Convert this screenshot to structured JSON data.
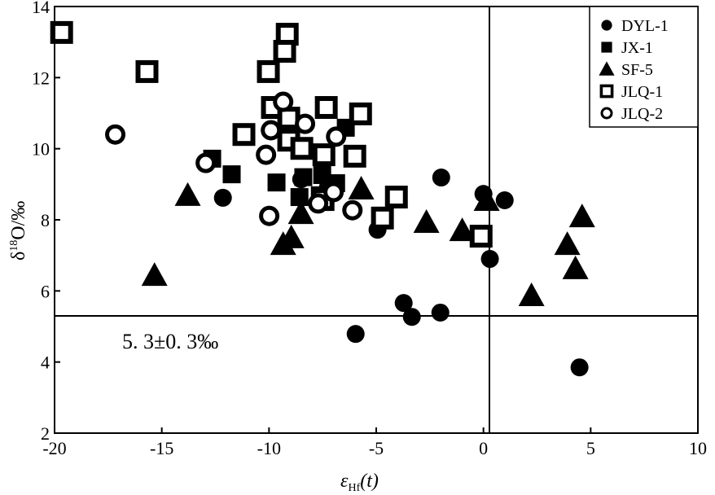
{
  "chart_data": {
    "type": "scatter",
    "xlabel": "ε",
    "xlabel_sub": "Hf",
    "xlabel_suffix": "(t)",
    "ylabel_prefix": "δ",
    "ylabel_sup": "18",
    "ylabel_suffix": "O/‰",
    "xlim": [
      -20,
      10
    ],
    "ylim": [
      2,
      14
    ],
    "xticks": [
      -20,
      -15,
      -10,
      -5,
      0,
      5,
      10
    ],
    "yticks": [
      2,
      4,
      6,
      8,
      10,
      12,
      14
    ],
    "grid": false,
    "legend_position": "top-right",
    "reference_lines": {
      "x": 0,
      "y": 5.3
    },
    "annotation": "5. 3±0. 3‰",
    "series": [
      {
        "name": "DYL-1",
        "marker": "filled-circle",
        "points": [
          [
            -12.15,
            8.62
          ],
          [
            -8.5,
            9.14
          ],
          [
            -7.25,
            8.92
          ],
          [
            -4.94,
            7.72
          ],
          [
            -1.97,
            9.19
          ],
          [
            0,
            8.73
          ],
          [
            0.99,
            8.55
          ],
          [
            0.3,
            6.9
          ],
          [
            -3.72,
            5.66
          ],
          [
            -3.34,
            5.27
          ],
          [
            -2.01,
            5.39
          ],
          [
            -5.96,
            4.79
          ],
          [
            4.48,
            3.85
          ]
        ]
      },
      {
        "name": "JX-1",
        "marker": "filled-square",
        "points": [
          [
            -12.65,
            9.72
          ],
          [
            -11.74,
            9.28
          ],
          [
            -9.65,
            9.05
          ],
          [
            -8.58,
            8.64
          ],
          [
            -7.63,
            8.69
          ],
          [
            -7.52,
            9.26
          ],
          [
            -6.87,
            9.03
          ],
          [
            -6.42,
            10.59
          ],
          [
            -8.4,
            9.2
          ]
        ]
      },
      {
        "name": "SF-5",
        "marker": "filled-triangle",
        "points": [
          [
            -15.34,
            6.44
          ],
          [
            -13.79,
            8.69
          ],
          [
            -9.34,
            7.31
          ],
          [
            -8.96,
            7.5
          ],
          [
            -8.51,
            8.18
          ],
          [
            -5.7,
            8.87
          ],
          [
            -2.66,
            7.93
          ],
          [
            -0.99,
            7.7
          ],
          [
            0.15,
            8.55
          ],
          [
            2.24,
            5.87
          ],
          [
            3.91,
            7.31
          ],
          [
            4.29,
            6.63
          ],
          [
            4.6,
            8.09
          ]
        ]
      },
      {
        "name": "JLQ-1",
        "marker": "open-square",
        "points": [
          [
            -19.67,
            13.27
          ],
          [
            -15.69,
            12.17
          ],
          [
            -9.15,
            13.22
          ],
          [
            -9.27,
            12.74
          ],
          [
            -10.03,
            12.17
          ],
          [
            -9.84,
            11.16
          ],
          [
            -9.08,
            10.86
          ],
          [
            -11.17,
            10.4
          ],
          [
            -7.33,
            11.16
          ],
          [
            -5.73,
            10.98
          ],
          [
            -9.08,
            10.24
          ],
          [
            -8.47,
            10.01
          ],
          [
            -7.44,
            9.83
          ],
          [
            -6.0,
            9.79
          ],
          [
            -7.48,
            8.57
          ],
          [
            -4.06,
            8.64
          ],
          [
            -4.71,
            8.05
          ],
          [
            -0.11,
            7.54
          ]
        ]
      },
      {
        "name": "JLQ-2",
        "marker": "open-circle",
        "points": [
          [
            -17.17,
            10.4
          ],
          [
            -12.95,
            9.6
          ],
          [
            -10.14,
            9.83
          ],
          [
            -9.99,
            8.11
          ],
          [
            -9.34,
            11.32
          ],
          [
            -9.91,
            10.52
          ],
          [
            -8.32,
            10.7
          ],
          [
            -6.87,
            10.34
          ],
          [
            -6.99,
            8.78
          ],
          [
            -6.11,
            8.27
          ],
          [
            -7.71,
            8.46
          ]
        ]
      }
    ]
  }
}
